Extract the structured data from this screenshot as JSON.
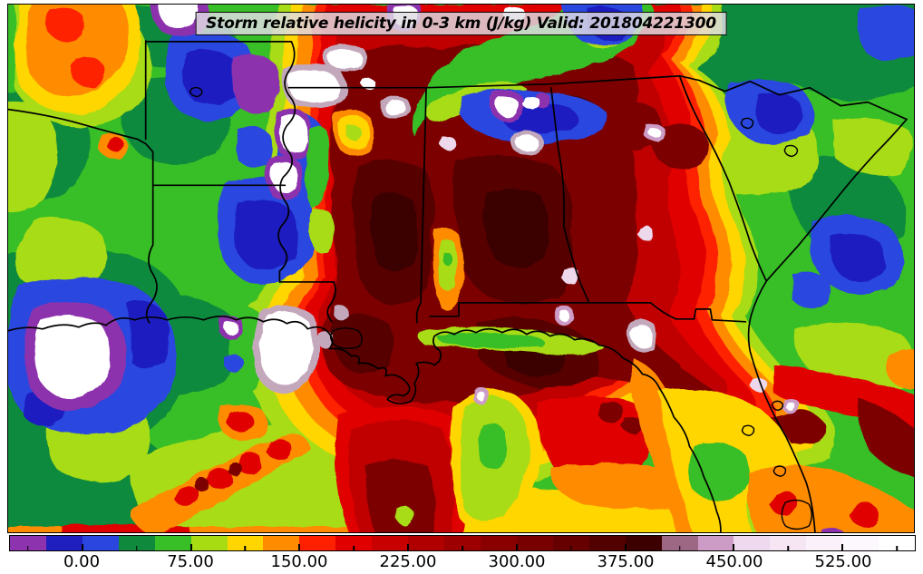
{
  "title": {
    "text": "Storm relative helicity in 0-3 km (J/kg) Valid: 201804221300"
  },
  "chart_data": {
    "type": "heatmap",
    "title": "Storm relative helicity in 0-3 km (J/kg)",
    "valid_timestamp": "201804221300",
    "units": "J/kg",
    "region": "South-central and southeastern United States: Texas/Oklahoma east through Louisiana, Mississippi, Alabama, Georgia to the Carolinas, south over the Gulf of Mexico and Florida",
    "colorbar": {
      "orientation": "horizontal",
      "value_min": -50,
      "value_max": 575,
      "segment_step": 25,
      "segment_colors": [
        "#8d33ad",
        "#1f1fc0",
        "#2a46df",
        "#0f8a3c",
        "#38be26",
        "#a8dc12",
        "#ffd600",
        "#ff8c00",
        "#ff2000",
        "#e00000",
        "#c80000",
        "#b00000",
        "#9c0000",
        "#8a0000",
        "#780000",
        "#660000",
        "#520000",
        "#3d0000",
        "#9d6884",
        "#cd9cc6",
        "#efd9ee",
        "#f6e6f4",
        "#fbf1fa",
        "#fdf8fd",
        "#ffffff"
      ],
      "major_ticks": [
        0,
        75,
        150,
        225,
        300,
        375,
        450,
        525
      ],
      "major_tick_labels": [
        "0.00",
        "75.00",
        "150.00",
        "225.00",
        "300.00",
        "375.00",
        "450.00",
        "525.00"
      ],
      "minor_ticks": [
        -37.5,
        37.5,
        112.5,
        187.5,
        262.5,
        337.5,
        412.5,
        487.5,
        562.5
      ]
    },
    "field_summary": [
      "Broad 200-400 J/kg maximum (dark red to maroon) over Mississippi, Alabama, Georgia, eastern Louisiana and the Florida panhandle",
      "Off-scale white cores (>550 J/kg) rimmed by mauve/purple along the Mississippi River, over southeast Louisiana and north of the Gulf coast",
      "0-100 J/kg greens over Texas/Oklahoma with a 100-175 J/kg orange pocket in the far northwest corner",
      "Sub-zero blue/purple pockets over Arkansas, central Texas, the western Gulf (with white <-50 core), Tennessee valley and the Carolinas",
      "150-250 J/kg red band along the Florida Atlantic coast; 100-175 J/kg yellow/orange across the Florida peninsula and southern Gulf"
    ]
  },
  "palette": {
    "green": "#38be26",
    "dgreen": "#0f8a3c",
    "ygreen": "#a8dc12",
    "yellow": "#ffd600",
    "orange": "#ff8c00",
    "redor": "#ff2000",
    "red": "#e00000",
    "dred": "#c00000",
    "maroon": "#7c0000",
    "dmaroon": "#570000",
    "vdmaroon": "#3a0000",
    "blue": "#2a46df",
    "navy": "#1e1ec0",
    "purple": "#8d33ad",
    "graypink": "#c3a8bc",
    "pinkm": "#cd9cc6",
    "palepink": "#eed8ec",
    "white": "#ffffff"
  }
}
